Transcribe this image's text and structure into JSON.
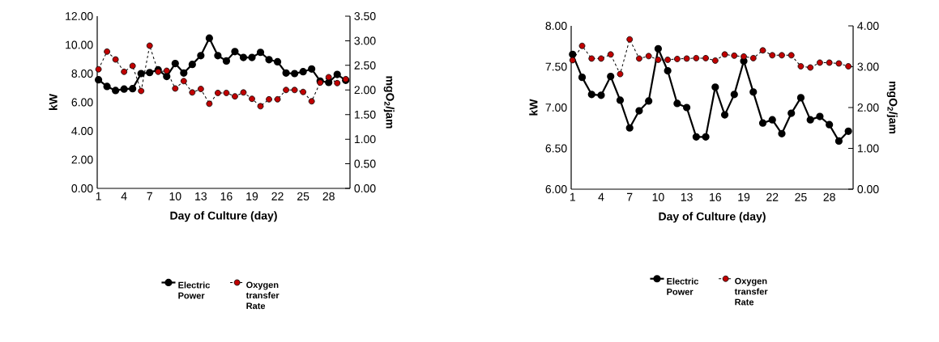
{
  "chart_data": [
    {
      "type": "line",
      "xlabel": "Day of Culture (day)",
      "ylabel": "kW",
      "y2label": "mgO$_{2}$/jam",
      "categories": [
        "1",
        null,
        null,
        "4",
        null,
        null,
        "7",
        null,
        null,
        "10",
        null,
        null,
        "13",
        null,
        null,
        "16",
        null,
        null,
        "19",
        null,
        null,
        "22",
        null,
        null,
        "25",
        null,
        null,
        "28",
        null,
        null
      ],
      "series": [
        {
          "name": "Electric Power",
          "color": "#000000",
          "marker": "circle",
          "line_style": "solid",
          "axis": "y",
          "values": [
            7.57,
            7.1,
            6.82,
            6.92,
            6.95,
            8.0,
            8.07,
            8.26,
            7.8,
            8.7,
            8.04,
            8.64,
            9.25,
            10.47,
            9.25,
            8.88,
            9.53,
            9.12,
            9.12,
            9.48,
            8.97,
            8.82,
            8.04,
            8.0,
            8.13,
            8.32,
            7.48,
            7.38,
            7.94,
            7.53
          ]
        },
        {
          "name": "Oxygen transfer Rate",
          "color": "#c00000",
          "marker": "circle",
          "line_style": "dashed",
          "axis": "y2",
          "values": [
            2.42,
            2.78,
            2.62,
            2.37,
            2.49,
            1.98,
            2.9,
            2.37,
            2.39,
            2.03,
            2.18,
            1.95,
            2.02,
            1.72,
            1.94,
            1.94,
            1.87,
            1.95,
            1.82,
            1.67,
            1.81,
            1.81,
            2.0,
            2.0,
            1.96,
            1.77,
            2.15,
            2.26,
            2.14,
            2.22
          ]
        }
      ],
      "ylim": [
        0,
        12
      ],
      "yticks": [
        {
          "value": 0,
          "label": "0.00"
        },
        {
          "value": 2,
          "label": "2.00"
        },
        {
          "value": 4,
          "label": "4.00"
        },
        {
          "value": 6,
          "label": "6.00"
        },
        {
          "value": 8,
          "label": "8.00"
        },
        {
          "value": 10,
          "label": "10.00"
        },
        {
          "value": 12,
          "label": "12.00"
        }
      ],
      "y2lim": [
        0,
        3.5
      ],
      "y2ticks": [
        {
          "value": 0,
          "label": "0.00"
        },
        {
          "value": 0.5,
          "label": "0.50"
        },
        {
          "value": 1,
          "label": "1.00"
        },
        {
          "value": 1.5,
          "label": "1.50"
        },
        {
          "value": 2,
          "label": "2.00"
        },
        {
          "value": 2.5,
          "label": "2.50"
        },
        {
          "value": 3,
          "label": "3.00"
        },
        {
          "value": 3.5,
          "label": "3.50"
        }
      ],
      "legend": "bottom"
    },
    {
      "type": "line",
      "xlabel": "Day of Culture (day)",
      "ylabel": "kW",
      "y2label": "mgO$_{2}$/jam",
      "categories": [
        "1",
        null,
        null,
        "4",
        null,
        null,
        "7",
        null,
        null,
        "10",
        null,
        null,
        "13",
        null,
        null,
        "16",
        null,
        null,
        "19",
        null,
        null,
        "22",
        null,
        null,
        "25",
        null,
        null,
        "28",
        null,
        null
      ],
      "series": [
        {
          "name": "Electric Power",
          "color": "#000000",
          "marker": "circle",
          "line_style": "solid",
          "axis": "y",
          "values": [
            7.65,
            7.37,
            7.16,
            7.15,
            7.38,
            7.09,
            6.75,
            6.96,
            7.08,
            7.72,
            7.45,
            7.05,
            7.0,
            6.64,
            6.64,
            7.25,
            6.91,
            7.16,
            7.57,
            7.19,
            6.81,
            6.85,
            6.68,
            6.93,
            7.12,
            6.85,
            6.89,
            6.79,
            6.59,
            6.71
          ]
        },
        {
          "name": "Oxygen transfer Rate",
          "color": "#c00000",
          "marker": "circle",
          "line_style": "dashed",
          "axis": "y2",
          "values": [
            3.16,
            3.51,
            3.2,
            3.2,
            3.3,
            2.82,
            3.67,
            3.2,
            3.26,
            3.17,
            3.17,
            3.19,
            3.2,
            3.21,
            3.21,
            3.15,
            3.3,
            3.27,
            3.25,
            3.21,
            3.4,
            3.28,
            3.28,
            3.28,
            3.01,
            2.98,
            3.1,
            3.1,
            3.08,
            3.01
          ]
        }
      ],
      "ylim": [
        6,
        8
      ],
      "yticks": [
        {
          "value": 6,
          "label": "6.00"
        },
        {
          "value": 6.5,
          "label": "6.50"
        },
        {
          "value": 7,
          "label": "7.00"
        },
        {
          "value": 7.5,
          "label": "7.50"
        },
        {
          "value": 8,
          "label": "8.00"
        }
      ],
      "y2lim": [
        0,
        4
      ],
      "y2ticks": [
        {
          "value": 0,
          "label": "0.00"
        },
        {
          "value": 1,
          "label": "1.00"
        },
        {
          "value": 2,
          "label": "2.00"
        },
        {
          "value": 3,
          "label": "3.00"
        },
        {
          "value": 4,
          "label": "4.00"
        }
      ],
      "legend": "bottom"
    }
  ]
}
